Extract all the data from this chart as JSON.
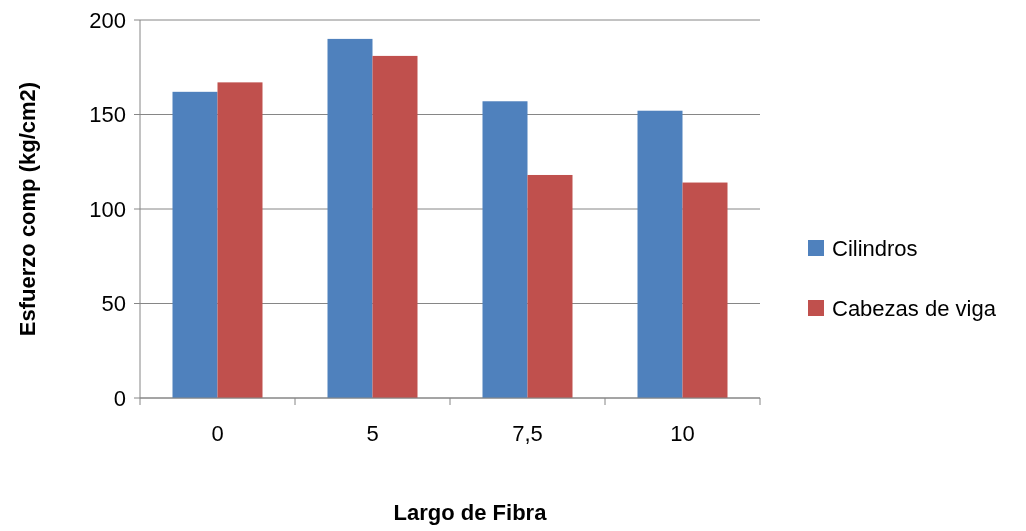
{
  "chart_data": {
    "type": "bar",
    "xlabel": "Largo de Fibra",
    "ylabel": "Esfuerzo comp (kg/cm2)",
    "categories": [
      "0",
      "5",
      "7,5",
      "10"
    ],
    "series": [
      {
        "name": "Cilindros",
        "color": "#4f81bd",
        "values": [
          162,
          190,
          157,
          152
        ]
      },
      {
        "name": "Cabezas de viga",
        "color": "#c0504d",
        "values": [
          167,
          181,
          118,
          114
        ]
      }
    ],
    "ylim": [
      0,
      200
    ],
    "yticks": [
      0,
      50,
      100,
      150,
      200
    ],
    "grid": "y",
    "legend": "right"
  }
}
